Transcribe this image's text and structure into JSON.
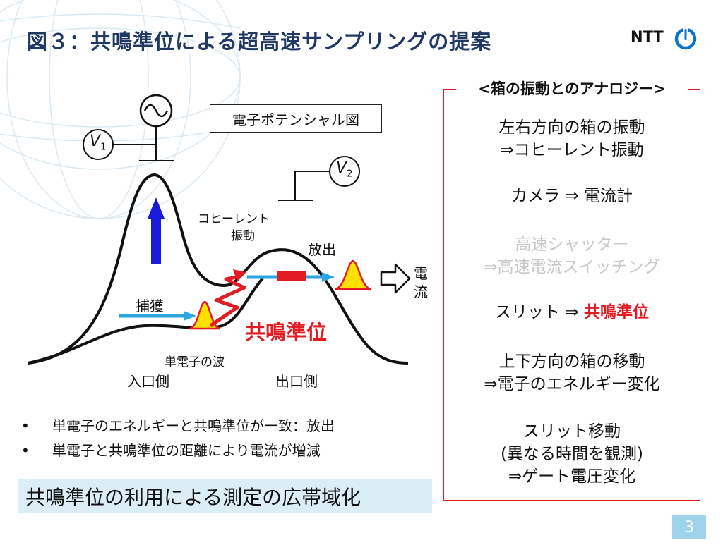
{
  "title": "図３：共鳴準位による超高速サンプリングの提案",
  "logo": {
    "text": "NTT",
    "icon": "ntt-logo-icon",
    "color": "#0c74c9"
  },
  "diagram": {
    "potential_label": "電子ポテンシャル図",
    "v1": "V",
    "v1_sub": "1",
    "v2": "V",
    "v2_sub": "2",
    "coherent_line1": "コヒーレント",
    "coherent_line2": "振動",
    "emission": "放出",
    "current_line1": "電",
    "current_line2": "流",
    "capture": "捕獲",
    "resonance": "共鳴準位",
    "single_electron_wave": "単電子の波",
    "entrance": "入口側",
    "exit": "出口側",
    "ac_source_icon": "sine-wave-icon",
    "colors": {
      "arrow_blue": "#1a1adb",
      "beam": "#2aa6e0",
      "resonance_red": "#e31b23",
      "wave_yellow": "#ffe000"
    }
  },
  "bullets": [
    "単電子のエネルギーと共鳴準位が一致：放出",
    "単電子と共鳴準位の距離により電流が増減"
  ],
  "banner": "共鳴準位の利用による測定の広帯域化",
  "analogy": {
    "title": "<箱の振動とのアナロジー>",
    "items": [
      {
        "line1": "左右方向の箱の振動",
        "line2": "⇒コヒーレント振動"
      },
      {
        "line1": "カメラ ⇒ 電流計"
      },
      {
        "line1": "高速シャッター",
        "line2": "⇒高速電流スイッチング"
      },
      {
        "line1": "スリット ⇒ ",
        "highlight": "共鳴準位"
      },
      {
        "line1": "上下方向の箱の移動",
        "line2": "⇒電子のエネルギー変化"
      },
      {
        "line1": "スリット移動",
        "line2": "(異なる時間を観測)",
        "line3": "⇒ゲート電圧変化"
      }
    ]
  },
  "page_number": "3"
}
